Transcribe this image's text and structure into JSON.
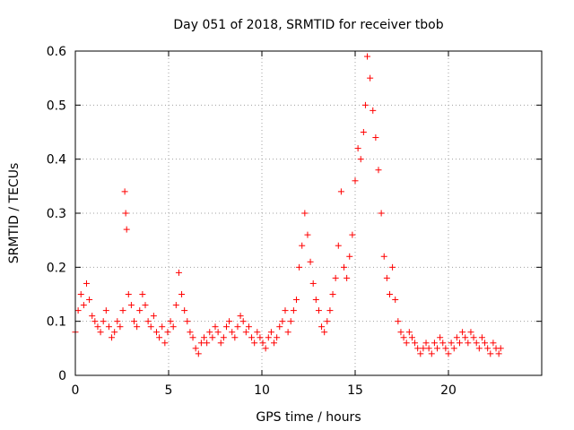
{
  "chart_data": {
    "type": "scatter",
    "title": "Day 051 of 2018, SRMTID for receiver tbob",
    "xlabel": "GPS time / hours",
    "ylabel": "SRMTID / TECUs",
    "xlim": [
      0,
      25
    ],
    "ylim": [
      0,
      0.6
    ],
    "xticks": [
      0,
      5,
      10,
      15,
      20
    ],
    "xtick_labels": [
      "0",
      "5",
      "10",
      "15",
      "20"
    ],
    "yticks": [
      0,
      0.1,
      0.2,
      0.3,
      0.4,
      0.5,
      0.6
    ],
    "ytick_labels": [
      "0",
      "0.1",
      "0.2",
      "0.3",
      "0.4",
      "0.5",
      "0.6"
    ],
    "grid": true,
    "marker": "+",
    "color": "#ff0000",
    "series": [
      {
        "name": "SRMTID",
        "x": [
          0.0,
          0.15,
          0.3,
          0.45,
          0.6,
          0.75,
          0.9,
          1.05,
          1.2,
          1.35,
          1.5,
          1.65,
          1.8,
          1.95,
          2.1,
          2.25,
          2.4,
          2.55,
          2.65,
          2.7,
          2.75,
          2.85,
          3.0,
          3.15,
          3.3,
          3.45,
          3.6,
          3.75,
          3.9,
          4.05,
          4.2,
          4.35,
          4.5,
          4.65,
          4.8,
          4.95,
          5.1,
          5.25,
          5.4,
          5.55,
          5.7,
          5.85,
          6.0,
          6.15,
          6.3,
          6.45,
          6.6,
          6.75,
          6.9,
          7.05,
          7.2,
          7.35,
          7.5,
          7.65,
          7.8,
          7.95,
          8.1,
          8.25,
          8.4,
          8.55,
          8.7,
          8.85,
          9.0,
          9.15,
          9.3,
          9.45,
          9.6,
          9.75,
          9.9,
          10.05,
          10.2,
          10.35,
          10.5,
          10.65,
          10.8,
          10.95,
          11.1,
          11.25,
          11.4,
          11.55,
          11.7,
          11.85,
          12.0,
          12.15,
          12.3,
          12.45,
          12.6,
          12.75,
          12.9,
          13.05,
          13.2,
          13.35,
          13.5,
          13.65,
          13.8,
          13.95,
          14.1,
          14.25,
          14.4,
          14.55,
          14.7,
          14.85,
          15.0,
          15.15,
          15.3,
          15.45,
          15.55,
          15.65,
          15.8,
          15.95,
          16.1,
          16.25,
          16.4,
          16.55,
          16.7,
          16.85,
          17.0,
          17.15,
          17.3,
          17.45,
          17.6,
          17.75,
          17.9,
          18.05,
          18.2,
          18.35,
          18.5,
          18.65,
          18.8,
          18.95,
          19.1,
          19.25,
          19.4,
          19.55,
          19.7,
          19.85,
          20.0,
          20.15,
          20.3,
          20.45,
          20.6,
          20.75,
          20.9,
          21.05,
          21.2,
          21.35,
          21.5,
          21.65,
          21.8,
          21.95,
          22.1,
          22.25,
          22.4,
          22.55,
          22.7,
          22.8
        ],
        "y": [
          0.08,
          0.12,
          0.15,
          0.13,
          0.17,
          0.14,
          0.11,
          0.1,
          0.09,
          0.08,
          0.1,
          0.12,
          0.09,
          0.07,
          0.08,
          0.1,
          0.09,
          0.12,
          0.34,
          0.3,
          0.27,
          0.15,
          0.13,
          0.1,
          0.09,
          0.12,
          0.15,
          0.13,
          0.1,
          0.09,
          0.11,
          0.08,
          0.07,
          0.09,
          0.06,
          0.08,
          0.1,
          0.09,
          0.13,
          0.19,
          0.15,
          0.12,
          0.1,
          0.08,
          0.07,
          0.05,
          0.04,
          0.06,
          0.07,
          0.06,
          0.08,
          0.07,
          0.09,
          0.08,
          0.06,
          0.07,
          0.09,
          0.1,
          0.08,
          0.07,
          0.09,
          0.11,
          0.1,
          0.08,
          0.09,
          0.07,
          0.06,
          0.08,
          0.07,
          0.06,
          0.05,
          0.07,
          0.08,
          0.06,
          0.07,
          0.09,
          0.1,
          0.12,
          0.08,
          0.1,
          0.12,
          0.14,
          0.2,
          0.24,
          0.3,
          0.26,
          0.21,
          0.17,
          0.14,
          0.12,
          0.09,
          0.08,
          0.1,
          0.12,
          0.15,
          0.18,
          0.24,
          0.34,
          0.2,
          0.18,
          0.22,
          0.26,
          0.36,
          0.42,
          0.4,
          0.45,
          0.5,
          0.59,
          0.55,
          0.49,
          0.44,
          0.38,
          0.3,
          0.22,
          0.18,
          0.15,
          0.2,
          0.14,
          0.1,
          0.08,
          0.07,
          0.06,
          0.08,
          0.07,
          0.06,
          0.05,
          0.04,
          0.05,
          0.06,
          0.05,
          0.04,
          0.06,
          0.05,
          0.07,
          0.06,
          0.05,
          0.04,
          0.06,
          0.05,
          0.07,
          0.06,
          0.08,
          0.07,
          0.06,
          0.08,
          0.07,
          0.06,
          0.05,
          0.07,
          0.06,
          0.05,
          0.04,
          0.06,
          0.05,
          0.04,
          0.05
        ]
      }
    ]
  }
}
